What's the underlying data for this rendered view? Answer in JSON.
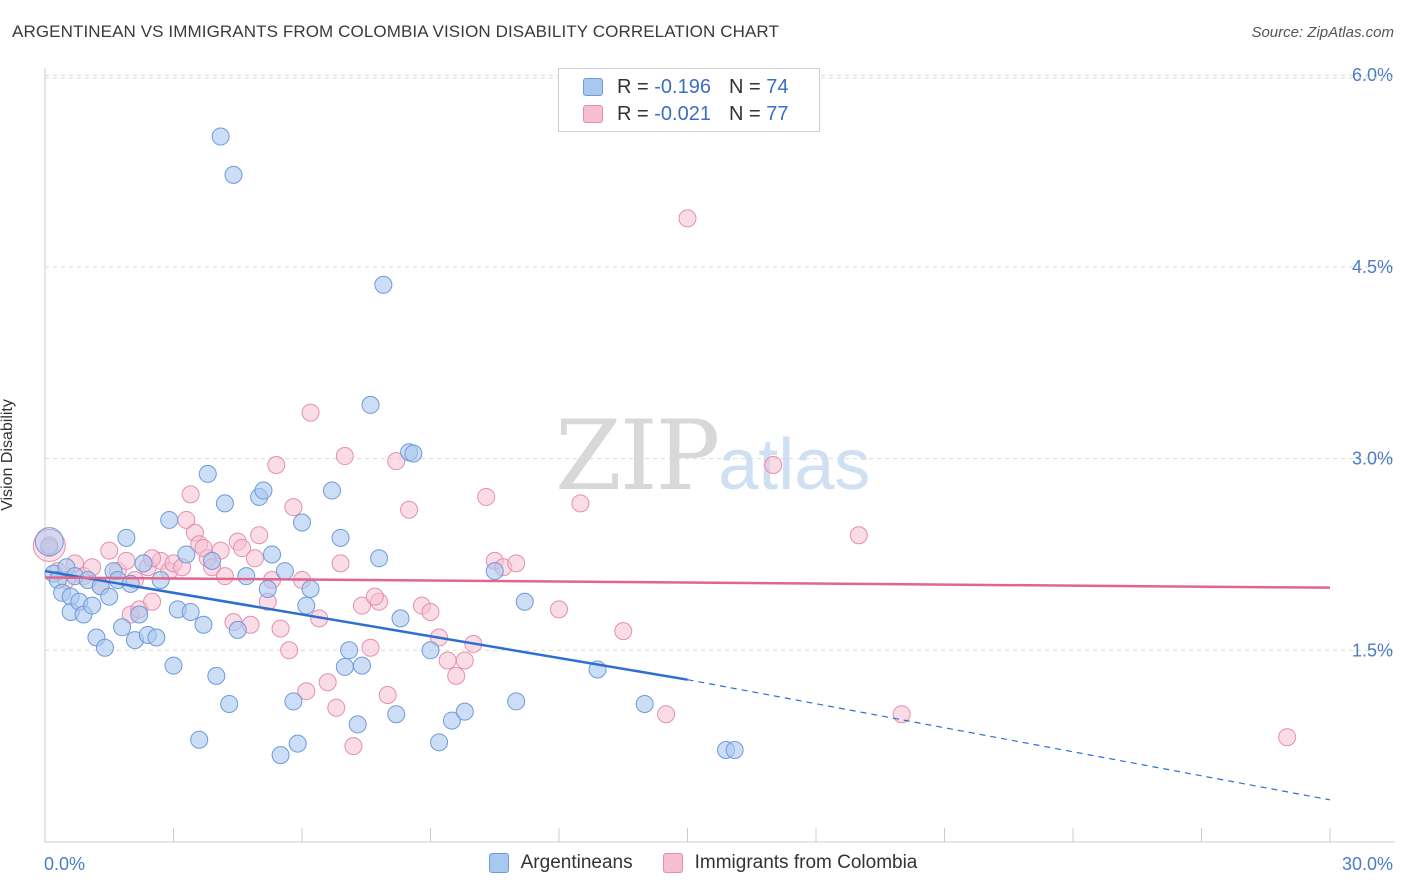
{
  "header": {
    "title": "ARGENTINEAN VS IMMIGRANTS FROM COLOMBIA VISION DISABILITY CORRELATION CHART",
    "source": "Source: ZipAtlas.com"
  },
  "watermark": {
    "zip": "ZIP",
    "atlas": "atlas"
  },
  "legend": {
    "rows": [
      {
        "r_label": "R =",
        "r_value": "-0.196",
        "n_label": "N =",
        "n_value": "74"
      },
      {
        "r_label": "R =",
        "r_value": "-0.021",
        "n_label": "N =",
        "n_value": "77"
      }
    ]
  },
  "bottom_legend": {
    "a": "Argentineans",
    "b": "Immigrants from Colombia"
  },
  "axes": {
    "ylabel": "Vision Disability",
    "x_min_label": "0.0%",
    "x_max_label": "30.0%",
    "y_tick_labels": [
      "1.5%",
      "3.0%",
      "4.5%",
      "6.0%"
    ]
  },
  "colors": {
    "blue_fill": "#a9c8ef",
    "blue_stroke": "#6f9ad9",
    "blue_line": "#2d6fd1",
    "pink_fill": "#f6bfd1",
    "pink_stroke": "#e58fae",
    "pink_line": "#e0668f",
    "grid": "#d9d9d9",
    "tick_text": "#4a7cc7"
  },
  "chart_data": {
    "type": "scatter",
    "title": "ARGENTINEAN VS IMMIGRANTS FROM COLOMBIA VISION DISABILITY CORRELATION CHART",
    "xlabel": "",
    "ylabel": "Vision Disability",
    "xlim": [
      0,
      30
    ],
    "ylim": [
      0,
      6.2
    ],
    "y_ticks": [
      1.5,
      3.0,
      4.5,
      6.0
    ],
    "grid": true,
    "legend_position": "top-center",
    "series": [
      {
        "name": "Argentineans",
        "r": -0.196,
        "n": 74,
        "trend": {
          "x0": 0,
          "y0": 2.12,
          "x1": 15.0,
          "y1": 1.27,
          "dash_x1": 30.0,
          "dash_y1": 0.33
        },
        "points": [
          [
            0.1,
            2.32
          ],
          [
            0.2,
            2.1
          ],
          [
            0.3,
            2.05
          ],
          [
            0.4,
            1.95
          ],
          [
            0.5,
            2.15
          ],
          [
            0.6,
            1.92
          ],
          [
            0.6,
            1.8
          ],
          [
            0.7,
            2.08
          ],
          [
            0.8,
            1.88
          ],
          [
            0.9,
            1.78
          ],
          [
            1.0,
            2.05
          ],
          [
            1.1,
            1.85
          ],
          [
            1.2,
            1.6
          ],
          [
            1.3,
            2.0
          ],
          [
            1.4,
            1.52
          ],
          [
            1.5,
            1.92
          ],
          [
            1.6,
            2.12
          ],
          [
            1.7,
            2.05
          ],
          [
            1.8,
            1.68
          ],
          [
            1.9,
            2.38
          ],
          [
            2.0,
            2.02
          ],
          [
            2.1,
            1.58
          ],
          [
            2.2,
            1.78
          ],
          [
            2.3,
            2.18
          ],
          [
            2.4,
            1.62
          ],
          [
            2.6,
            1.6
          ],
          [
            2.7,
            2.05
          ],
          [
            2.9,
            2.52
          ],
          [
            3.0,
            1.38
          ],
          [
            3.1,
            1.82
          ],
          [
            3.3,
            2.25
          ],
          [
            3.4,
            1.8
          ],
          [
            3.6,
            0.8
          ],
          [
            3.7,
            1.7
          ],
          [
            3.8,
            2.88
          ],
          [
            3.9,
            2.2
          ],
          [
            4.0,
            1.3
          ],
          [
            4.2,
            2.65
          ],
          [
            4.3,
            1.08
          ],
          [
            4.4,
            5.22
          ],
          [
            4.5,
            1.66
          ],
          [
            4.7,
            2.08
          ],
          [
            5.0,
            2.7
          ],
          [
            5.1,
            2.75
          ],
          [
            5.2,
            1.98
          ],
          [
            5.3,
            2.25
          ],
          [
            5.5,
            0.68
          ],
          [
            5.6,
            2.12
          ],
          [
            5.8,
            1.1
          ],
          [
            5.9,
            0.77
          ],
          [
            6.0,
            2.5
          ],
          [
            6.1,
            1.85
          ],
          [
            6.2,
            1.98
          ],
          [
            6.7,
            2.75
          ],
          [
            6.9,
            2.38
          ],
          [
            7.0,
            1.37
          ],
          [
            7.1,
            1.5
          ],
          [
            7.3,
            0.92
          ],
          [
            7.4,
            1.38
          ],
          [
            7.6,
            3.42
          ],
          [
            7.8,
            2.22
          ],
          [
            7.9,
            4.36
          ],
          [
            8.2,
            1.0
          ],
          [
            8.3,
            1.75
          ],
          [
            8.5,
            3.05
          ],
          [
            8.6,
            3.04
          ],
          [
            9.0,
            1.5
          ],
          [
            9.2,
            0.78
          ],
          [
            9.5,
            0.95
          ],
          [
            9.8,
            1.02
          ],
          [
            10.5,
            2.12
          ],
          [
            11.0,
            1.1
          ],
          [
            11.2,
            1.88
          ],
          [
            14.0,
            1.08
          ]
        ],
        "extra_points": [
          [
            4.1,
            5.52
          ],
          [
            12.9,
            1.35
          ],
          [
            15.9,
            0.72
          ],
          [
            16.1,
            0.72
          ]
        ]
      },
      {
        "name": "Immigrants from Colombia",
        "r": -0.021,
        "n": 77,
        "trend": {
          "x0": 0,
          "y0": 2.07,
          "x1": 30.0,
          "y1": 1.99
        },
        "points": [
          [
            0.1,
            2.3
          ],
          [
            0.3,
            2.12
          ],
          [
            0.5,
            2.05
          ],
          [
            0.7,
            2.18
          ],
          [
            0.9,
            2.08
          ],
          [
            1.1,
            2.15
          ],
          [
            1.3,
            2.0
          ],
          [
            1.5,
            2.28
          ],
          [
            1.7,
            2.12
          ],
          [
            1.9,
            2.2
          ],
          [
            2.0,
            1.78
          ],
          [
            2.1,
            2.05
          ],
          [
            2.2,
            1.82
          ],
          [
            2.4,
            2.15
          ],
          [
            2.5,
            1.88
          ],
          [
            2.7,
            2.2
          ],
          [
            2.9,
            2.12
          ],
          [
            3.0,
            2.18
          ],
          [
            3.2,
            2.15
          ],
          [
            3.3,
            2.52
          ],
          [
            3.4,
            2.72
          ],
          [
            3.5,
            2.42
          ],
          [
            3.6,
            2.33
          ],
          [
            3.8,
            2.22
          ],
          [
            3.9,
            2.15
          ],
          [
            4.1,
            2.28
          ],
          [
            4.2,
            2.08
          ],
          [
            4.4,
            1.72
          ],
          [
            4.5,
            2.35
          ],
          [
            4.6,
            2.3
          ],
          [
            4.8,
            1.7
          ],
          [
            4.9,
            2.22
          ],
          [
            5.0,
            2.4
          ],
          [
            5.2,
            1.88
          ],
          [
            5.4,
            2.95
          ],
          [
            5.5,
            1.67
          ],
          [
            5.7,
            1.5
          ],
          [
            5.8,
            2.62
          ],
          [
            6.0,
            2.05
          ],
          [
            6.1,
            1.18
          ],
          [
            6.2,
            3.36
          ],
          [
            6.4,
            1.75
          ],
          [
            6.6,
            1.25
          ],
          [
            6.8,
            1.05
          ],
          [
            7.0,
            3.02
          ],
          [
            7.2,
            0.75
          ],
          [
            7.4,
            1.85
          ],
          [
            7.6,
            1.52
          ],
          [
            7.8,
            1.88
          ],
          [
            8.0,
            1.15
          ],
          [
            8.2,
            2.98
          ],
          [
            8.5,
            2.6
          ],
          [
            8.8,
            1.85
          ],
          [
            9.0,
            1.8
          ],
          [
            9.2,
            1.6
          ],
          [
            9.4,
            1.42
          ],
          [
            9.6,
            1.3
          ],
          [
            9.8,
            1.42
          ],
          [
            10.0,
            1.55
          ],
          [
            10.3,
            2.7
          ],
          [
            10.5,
            2.2
          ],
          [
            10.7,
            2.15
          ],
          [
            11.0,
            2.18
          ],
          [
            12.0,
            1.82
          ],
          [
            12.5,
            2.65
          ],
          [
            13.5,
            1.65
          ],
          [
            14.5,
            1.0
          ],
          [
            15.0,
            4.88
          ],
          [
            17.0,
            2.95
          ],
          [
            19.0,
            2.4
          ],
          [
            20.0,
            1.0
          ],
          [
            29.0,
            0.82
          ],
          [
            2.5,
            2.22
          ],
          [
            3.7,
            2.3
          ],
          [
            5.3,
            2.05
          ],
          [
            6.9,
            2.18
          ],
          [
            7.7,
            1.92
          ]
        ]
      }
    ]
  }
}
